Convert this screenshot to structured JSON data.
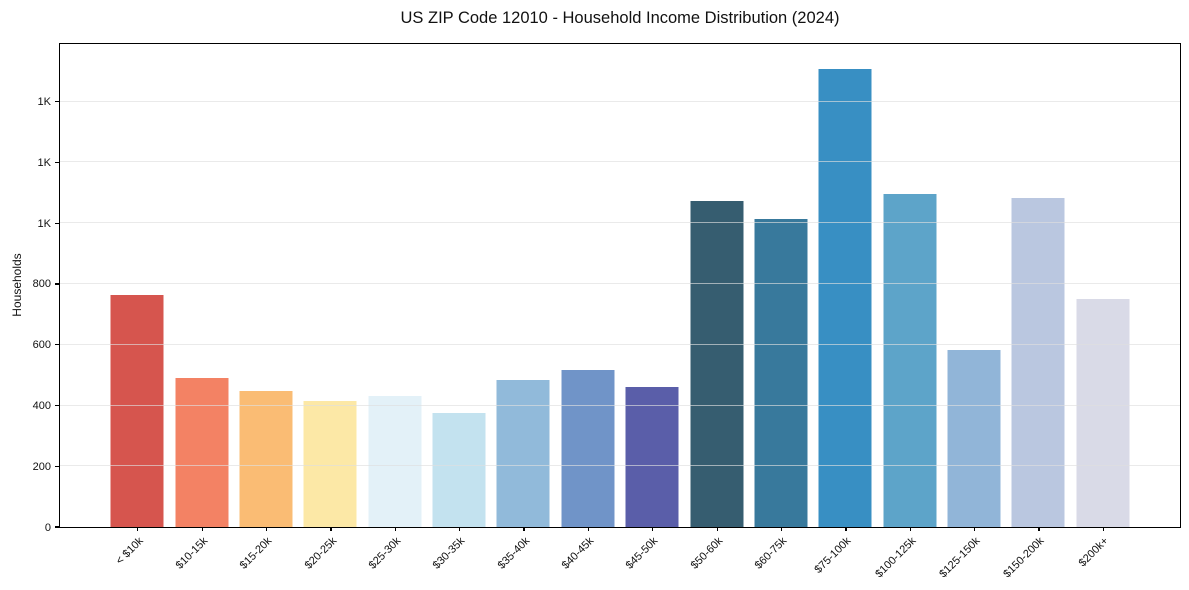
{
  "chart_data": {
    "type": "bar",
    "title": "US ZIP Code 12010 - Household Income Distribution (2024)",
    "xlabel": "",
    "ylabel": "Households",
    "categories": [
      "< $10k",
      "$10-15k",
      "$15-20k",
      "$20-25k",
      "$25-30k",
      "$30-35k",
      "$35-40k",
      "$40-45k",
      "$45-50k",
      "$50-60k",
      "$60-75k",
      "$75-100k",
      "$100-125k",
      "$125-150k",
      "$150-200k",
      "$200k+"
    ],
    "values": [
      765,
      490,
      448,
      416,
      432,
      376,
      485,
      518,
      462,
      1072,
      1015,
      1508,
      1096,
      584,
      1084,
      752
    ],
    "bar_colors": [
      "#d6554e",
      "#f38264",
      "#fabc74",
      "#fce8a6",
      "#e3f1f8",
      "#c3e2ef",
      "#91bada",
      "#7094c8",
      "#5a5ea9",
      "#365d70",
      "#38799c",
      "#388fc3",
      "#5da4c9",
      "#91b5d8",
      "#bac7e0",
      "#d9dae7"
    ],
    "ylim": [
      0,
      1590
    ],
    "yticks": [
      {
        "value": 0,
        "label": "0"
      },
      {
        "value": 200,
        "label": "200"
      },
      {
        "value": 400,
        "label": "400"
      },
      {
        "value": 600,
        "label": "600"
      },
      {
        "value": 800,
        "label": "800"
      },
      {
        "value": 1000,
        "label": "1K"
      },
      {
        "value": 1200,
        "label": "1K"
      },
      {
        "value": 1400,
        "label": "1K"
      }
    ],
    "grid": "horizontal",
    "grid_color": "#dedede",
    "spine_color": "#000000",
    "background": "#ffffff"
  }
}
